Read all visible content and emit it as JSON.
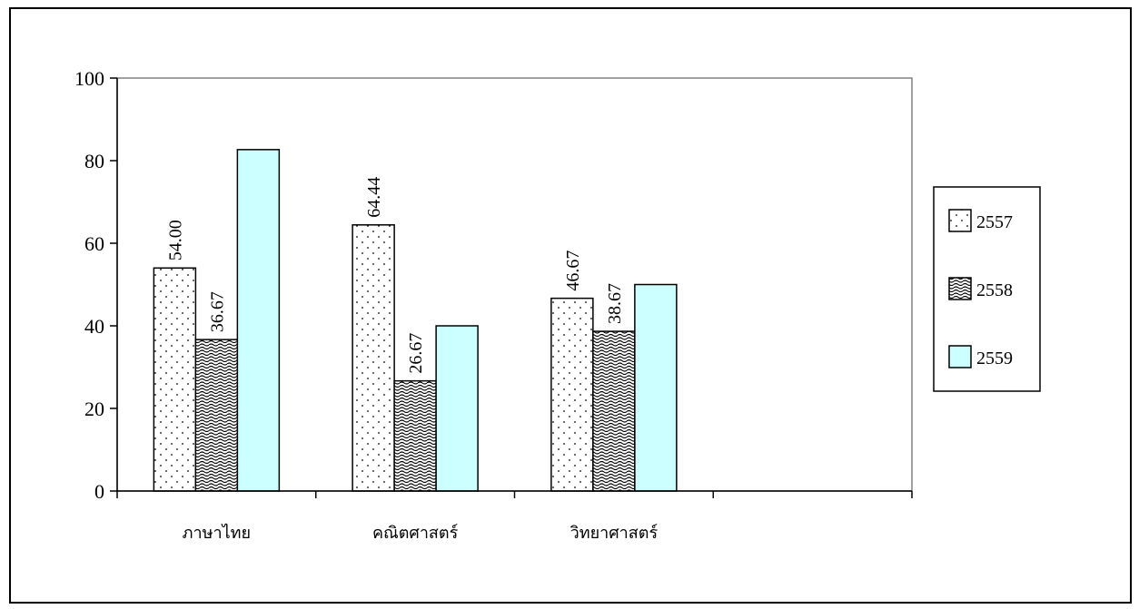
{
  "chart_data": {
    "type": "bar",
    "title": "",
    "xlabel": "",
    "ylabel": "",
    "categories": [
      "ภาษาไทย",
      "คณิตศาสตร์",
      "วิทยาศาสตร์",
      ""
    ],
    "series": [
      {
        "name": "2557",
        "values": [
          54.0,
          64.44,
          46.67,
          null
        ],
        "data_labels": [
          "54.00",
          "64.44",
          "46.67",
          null
        ],
        "fill": "dots",
        "color": "#ffffff"
      },
      {
        "name": "2558",
        "values": [
          36.67,
          26.67,
          38.67,
          null
        ],
        "data_labels": [
          "36.67",
          "26.67",
          "38.67",
          null
        ],
        "fill": "waves",
        "color": "#ffffff"
      },
      {
        "name": "2559",
        "values": [
          82.67,
          40.0,
          50.0,
          null
        ],
        "data_labels": [
          null,
          null,
          null,
          null
        ],
        "fill": "solid",
        "color": "#ccffff"
      }
    ],
    "ylim": [
      0,
      100
    ],
    "yticks": [
      "0",
      "20",
      "40",
      "60",
      "80",
      "100"
    ],
    "grid": false,
    "legend_position": "right"
  }
}
